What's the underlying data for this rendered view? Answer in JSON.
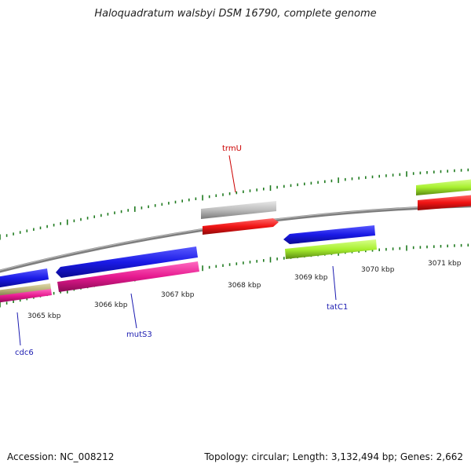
{
  "header": {
    "title": "Haloquadratum walsbyi DSM 16790, complete genome"
  },
  "footer": {
    "accession": "Accession: NC_008212",
    "summary": "Topology: circular; Length: 3,132,494 bp; Genes: 2,662"
  },
  "colors": {
    "backbone": "#8a8a8a",
    "ticks": "#1e7a1e",
    "blue": "#1a1ae6",
    "pink": "#e6198f",
    "red": "#f01414",
    "grey": "#b9b9b9",
    "lime": "#a8f030",
    "olive": "#b8b078",
    "label_red": "#cc0000",
    "label_blue": "#1a1ab0"
  },
  "ruler": {
    "ticks": [
      {
        "label": "3065 kbp"
      },
      {
        "label": "3066 kbp"
      },
      {
        "label": "3067 kbp"
      },
      {
        "label": "3068 kbp"
      },
      {
        "label": "3069 kbp"
      },
      {
        "label": "3070 kbp"
      },
      {
        "label": "3071 kbp"
      }
    ]
  },
  "gene_labels": {
    "trmU": "trmU",
    "cdc6": "cdc6",
    "mutS3": "mutS3",
    "tatC1": "tatC1"
  }
}
